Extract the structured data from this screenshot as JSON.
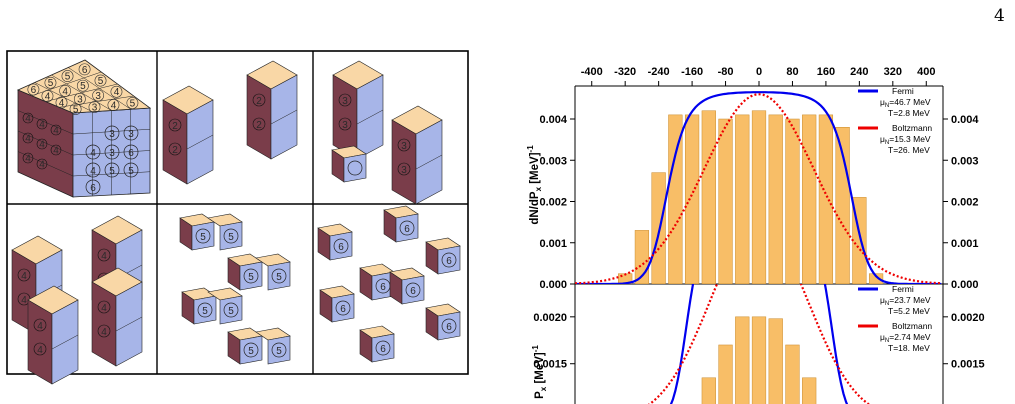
{
  "page": {
    "number": "4"
  },
  "cube_figure": {
    "top_face_digits": [
      "6",
      "5",
      "5",
      "6",
      "4",
      "4",
      "5",
      "5",
      "4",
      "3",
      "3",
      "4",
      "5",
      "3",
      "4",
      "5"
    ],
    "front_face_digits": [
      "3",
      "4",
      "3",
      "6",
      "3",
      "5",
      "4",
      "5",
      "6"
    ],
    "side_face_digits": [
      "4",
      "4",
      "4",
      "4",
      "4",
      "4",
      "4",
      "4"
    ],
    "panel_2_digits": [
      "2",
      "2",
      "2",
      "2"
    ],
    "panel_3_digits": [
      "3",
      "3",
      "3",
      "3"
    ],
    "panel_4_digits": [
      "4",
      "4",
      "4",
      "4",
      "4",
      "4",
      "4",
      "4"
    ],
    "panel_5_digits": [
      "5",
      "5",
      "5",
      "5",
      "5",
      "5",
      "5",
      "5"
    ],
    "panel_6_digits": [
      "6",
      "6",
      "6",
      "6",
      "6",
      "6",
      "6",
      "6"
    ],
    "colors": {
      "top": "#f9d7a6",
      "front": "#a7b5e8",
      "side": "#7a3d4a",
      "edge": "#222222"
    }
  },
  "chart_data": {
    "type": "bar",
    "top_axis_ticks": [
      "-400",
      "-320",
      "-240",
      "-160",
      "-80",
      "0",
      "80",
      "160",
      "240",
      "320",
      "400"
    ],
    "panels": [
      {
        "yticks": [
          "0.000",
          "0.001",
          "0.002",
          "0.003",
          "0.004"
        ],
        "ylabel_html": "dN/dP",
        "ylabel_sub": "x",
        "ylabel_unit": " [MeV]",
        "ylabel_sup": "-1",
        "ylim": [
          0,
          0.0048
        ],
        "bar_x": [
          -320,
          -280,
          -240,
          -200,
          -160,
          -120,
          -80,
          -40,
          0,
          40,
          80,
          120,
          160,
          200,
          240,
          280
        ],
        "bar_values": [
          0.00025,
          0.0013,
          0.0027,
          0.0041,
          0.0041,
          0.0042,
          0.004,
          0.0041,
          0.0042,
          0.0041,
          0.004,
          0.0041,
          0.0041,
          0.0038,
          0.0021,
          0.00025
        ],
        "legend": [
          {
            "name": "Fermi",
            "mu": "=46.7 MeV",
            "T": "T=2.8 MeV",
            "color": "#0000ee"
          },
          {
            "name": "Boltzmann",
            "mu": "=15.3 MeV",
            "T": "T=26. MeV",
            "color": "#ee0000"
          }
        ],
        "fermi_peak": 0.00465,
        "boltz_peak": 0.0046
      },
      {
        "yticks": [
          "0.0015",
          "0.0020"
        ],
        "ylabel_html": "P",
        "ylabel_sub": "x",
        "ylabel_unit": " [MeV]",
        "ylabel_sup": "-1",
        "ylim": [
          0.0009,
          0.00235
        ],
        "bar_x": [
          -120,
          -80,
          -40,
          0,
          40,
          80,
          120
        ],
        "bar_values": [
          0.00135,
          0.0017,
          0.002,
          0.002,
          0.00198,
          0.0017,
          0.00135
        ],
        "legend": [
          {
            "name": "Fermi",
            "mu": "=23.7 MeV",
            "T": "T=5.2 MeV",
            "color": "#0000ee"
          },
          {
            "name": "Boltzmann",
            "mu": "=2.74 MeV",
            "T": "T=18. MeV",
            "color": "#ee0000"
          }
        ],
        "fermi_peak": 0.00218,
        "boltz_peak": 0.0021
      }
    ]
  }
}
